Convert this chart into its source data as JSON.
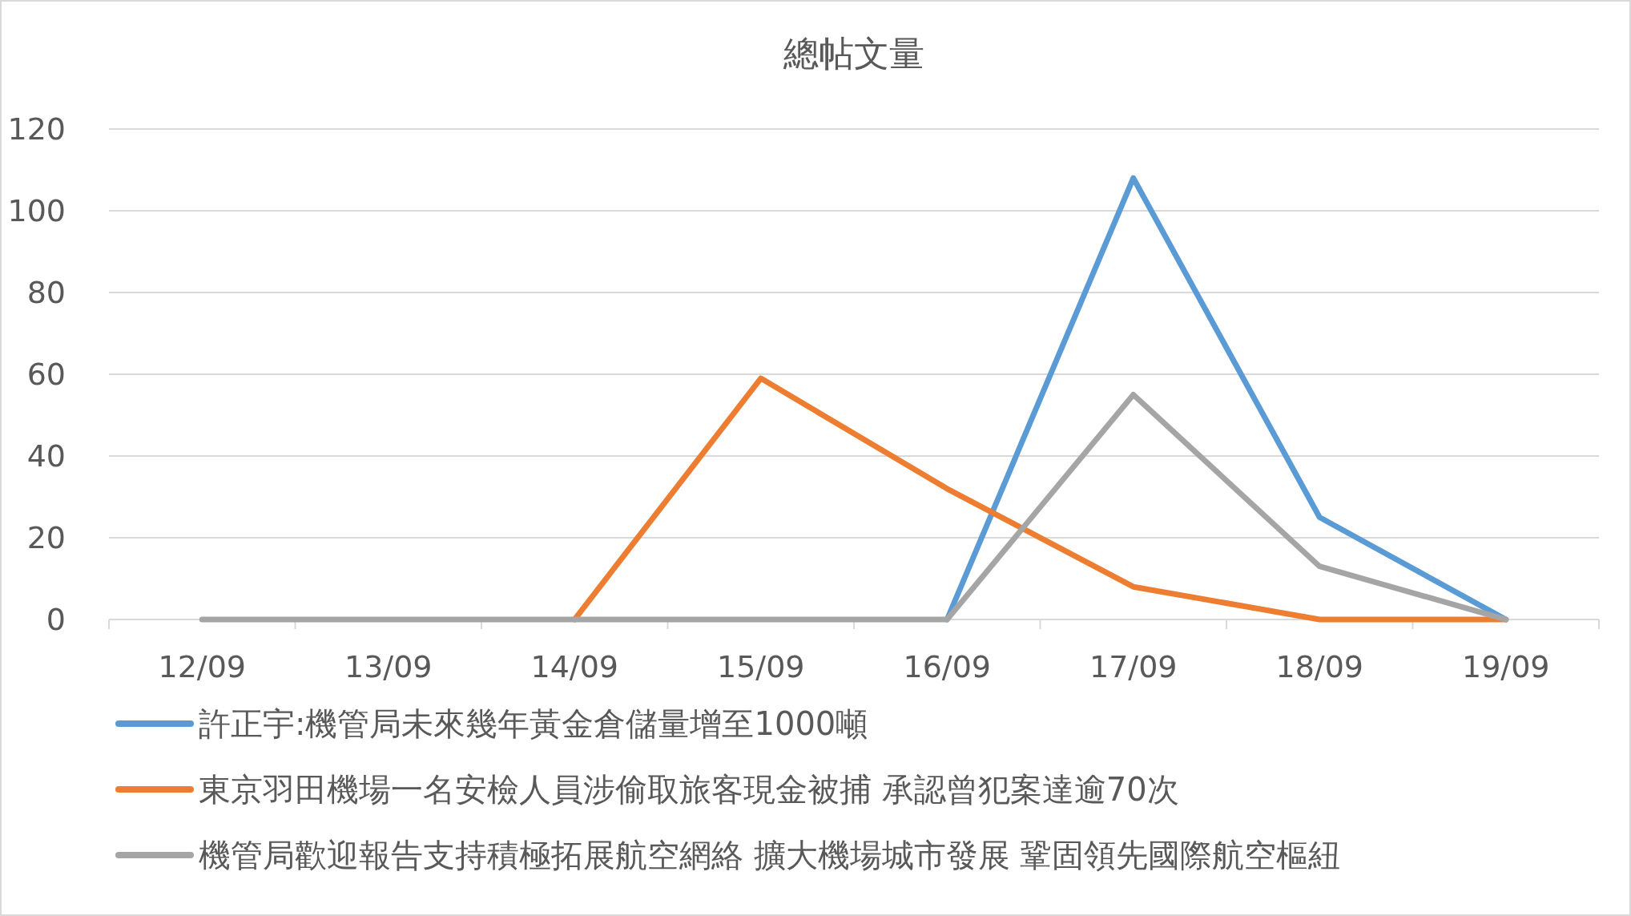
{
  "chart_data": {
    "type": "line",
    "title": "總帖文量",
    "categories": [
      "12/09",
      "13/09",
      "14/09",
      "15/09",
      "16/09",
      "17/09",
      "18/09",
      "19/09"
    ],
    "series": [
      {
        "name": "許正宇:機管局未來幾年黃金倉儲量增至1000噸",
        "color": "#5b9bd5",
        "values": [
          null,
          null,
          null,
          null,
          0,
          108,
          25,
          0
        ]
      },
      {
        "name": "東京羽田機場一名安檢人員涉偷取旅客現金被捕 承認曾犯案達逾70次",
        "color": "#ed7d31",
        "values": [
          null,
          null,
          0,
          59,
          32,
          8,
          0,
          0
        ]
      },
      {
        "name": "機管局歡迎報告支持積極拓展航空網絡 擴大機場城市發展 鞏固領先國際航空樞紐",
        "color": "#a5a5a5",
        "values": [
          0,
          0,
          0,
          0,
          0,
          55,
          13,
          0
        ]
      }
    ],
    "ylim": [
      0,
      120
    ],
    "yticks": [
      0,
      20,
      40,
      60,
      80,
      100,
      120
    ],
    "grid": "y",
    "legend": "bottom",
    "marker": "none",
    "line_style": "solid"
  }
}
